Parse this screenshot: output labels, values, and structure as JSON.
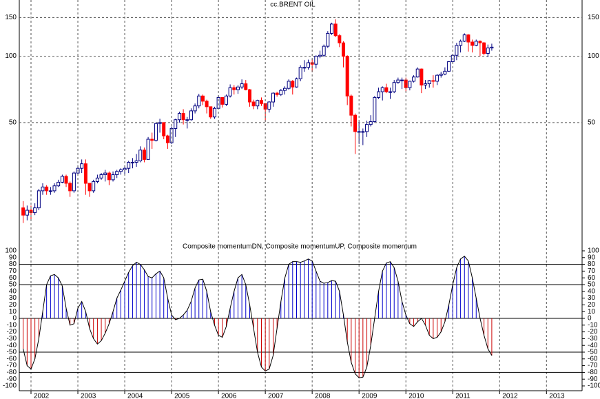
{
  "chart_data": [
    {
      "type": "candlestick",
      "title": "cc.BRENT OIL",
      "log": true,
      "grid": true,
      "xlim": [
        2001.75,
        2013.76
      ],
      "ylim": [
        15,
        180
      ],
      "yticks": [
        150,
        100,
        50
      ],
      "colors": {
        "up": "#ffffff",
        "up_edge": "#000080",
        "down": "#ff0000"
      },
      "x": [
        2001.833,
        2001.917,
        2002,
        2002.083,
        2002.167,
        2002.25,
        2002.333,
        2002.417,
        2002.5,
        2002.583,
        2002.667,
        2002.75,
        2002.833,
        2002.917,
        2003,
        2003.083,
        2003.167,
        2003.25,
        2003.333,
        2003.417,
        2003.5,
        2003.583,
        2003.667,
        2003.75,
        2003.833,
        2003.917,
        2004,
        2004.083,
        2004.167,
        2004.25,
        2004.333,
        2004.417,
        2004.5,
        2004.583,
        2004.667,
        2004.75,
        2004.833,
        2004.917,
        2005,
        2005.083,
        2005.167,
        2005.25,
        2005.333,
        2005.417,
        2005.5,
        2005.583,
        2005.667,
        2005.75,
        2005.833,
        2005.917,
        2006,
        2006.083,
        2006.167,
        2006.25,
        2006.333,
        2006.417,
        2006.5,
        2006.583,
        2006.667,
        2006.75,
        2006.833,
        2006.917,
        2007,
        2007.083,
        2007.167,
        2007.25,
        2007.333,
        2007.417,
        2007.5,
        2007.583,
        2007.667,
        2007.75,
        2007.833,
        2007.917,
        2008,
        2008.083,
        2008.167,
        2008.25,
        2008.333,
        2008.417,
        2008.5,
        2008.583,
        2008.667,
        2008.75,
        2008.833,
        2008.917,
        2009,
        2009.083,
        2009.167,
        2009.25,
        2009.333,
        2009.417,
        2009.5,
        2009.583,
        2009.667,
        2009.75,
        2009.833,
        2009.917,
        2010,
        2010.083,
        2010.167,
        2010.25,
        2010.333,
        2010.417,
        2010.5,
        2010.583,
        2010.667,
        2010.75,
        2010.833,
        2010.917,
        2011,
        2011.083,
        2011.167,
        2011.25,
        2011.333,
        2011.417,
        2011.5,
        2011.583,
        2011.667,
        2011.75,
        2011.833
      ],
      "open": [
        20.5,
        19.0,
        20.0,
        19.5,
        20.5,
        24.5,
        25.5,
        24.5,
        24.5,
        25.8,
        26.8,
        28.5,
        26.5,
        24.5,
        29.5,
        31,
        32.5,
        26.5,
        24.5,
        27,
        28,
        29,
        29.5,
        27.5,
        29,
        30,
        30.5,
        31,
        33,
        33,
        33.5,
        37.5,
        34,
        42,
        41.5,
        49.5,
        50,
        43.5,
        40.5,
        47,
        51.5,
        55,
        51.5,
        51.5,
        56.5,
        59.5,
        66,
        62.5,
        59,
        53,
        58,
        65,
        60.5,
        66,
        72,
        70.5,
        72.5,
        75,
        70.5,
        62,
        59.5,
        63,
        61,
        57.5,
        62,
        68,
        67,
        70,
        71.5,
        77,
        72.5,
        79,
        89,
        89,
        93.5,
        92,
        100,
        101,
        111,
        127,
        140,
        124,
        115,
        100,
        66,
        54,
        45.5,
        45.5,
        45.5,
        49,
        50.5,
        65,
        69,
        72,
        69,
        69,
        76,
        78,
        78,
        72,
        77,
        80.5,
        87.5,
        74,
        75,
        77.5,
        77,
        82,
        83,
        85.5,
        94.5,
        101,
        112,
        117,
        125,
        116,
        112,
        117,
        115,
        103,
        109
      ],
      "high": [
        22,
        21,
        21,
        21.5,
        25,
        26.5,
        26,
        25.5,
        26.5,
        27.5,
        29,
        29,
        27,
        30,
        32,
        34,
        34,
        26.5,
        27.5,
        29,
        29.5,
        30.5,
        30,
        30,
        30.5,
        31,
        32,
        33.5,
        34.5,
        36,
        39,
        38.5,
        43,
        45,
        50,
        52,
        50,
        44,
        48,
        52,
        56,
        57.5,
        53,
        58,
        61,
        67.5,
        67,
        63.5,
        59,
        59,
        66.5,
        65,
        67,
        74.5,
        74,
        74,
        78.5,
        78,
        71,
        63.5,
        63.5,
        65,
        61,
        62.5,
        68.5,
        69,
        71,
        73,
        78.5,
        78,
        80,
        91,
        96,
        96.5,
        97,
        101,
        106,
        113,
        130,
        142,
        147,
        126,
        117,
        101,
        67,
        55,
        50,
        47,
        51,
        54,
        66,
        72,
        73,
        75,
        72,
        78,
        80,
        80,
        80,
        77.5,
        82,
        89,
        88,
        78,
        78,
        82,
        83,
        85,
        89,
        95,
        102,
        115,
        119,
        127,
        126,
        119,
        119,
        118,
        116,
        113,
        114
      ],
      "low": [
        17.5,
        18,
        18,
        19,
        20,
        23.5,
        23.5,
        23.5,
        24,
        25.5,
        26.5,
        25.5,
        23,
        24,
        29,
        29.5,
        23.5,
        23,
        24,
        26.5,
        27.5,
        27,
        26,
        27,
        28,
        29,
        29,
        29.5,
        31,
        31.5,
        33,
        33,
        34,
        38,
        41,
        45,
        42,
        38,
        40,
        43,
        50,
        49,
        47,
        51,
        55,
        58,
        60,
        55,
        52,
        52,
        58,
        58.5,
        59.5,
        65,
        67,
        67.5,
        71,
        70,
        59,
        57.5,
        57.5,
        59.5,
        50.5,
        55.5,
        59,
        65.5,
        66,
        67,
        70.5,
        67,
        72,
        77,
        85,
        87,
        85,
        88,
        98,
        99,
        109,
        125,
        122,
        110,
        89,
        60,
        48,
        36,
        40,
        39.5,
        43,
        48,
        50,
        64,
        63,
        68,
        64,
        68,
        75,
        71,
        69,
        70,
        76,
        80,
        68,
        71,
        72,
        72,
        74,
        80,
        82,
        85,
        93,
        96,
        104,
        116,
        105,
        104,
        111,
        100,
        101,
        99,
        106
      ],
      "close": [
        19.0,
        20.0,
        19.5,
        20.5,
        24.5,
        25.5,
        24.5,
        24.5,
        25.8,
        26.8,
        28.5,
        26.5,
        24.5,
        29.5,
        31,
        32.5,
        26.5,
        24.5,
        27,
        28,
        29,
        29.5,
        27.5,
        29,
        30,
        30.5,
        31,
        33,
        33,
        33.5,
        37.5,
        34,
        42,
        41.5,
        49.5,
        50,
        43.5,
        40.5,
        47,
        51.5,
        55,
        51.5,
        51.5,
        56.5,
        59.5,
        66,
        62.5,
        59,
        53,
        58,
        65,
        60.5,
        66,
        72,
        70.5,
        72.5,
        75,
        70.5,
        62,
        59.5,
        63,
        61,
        57.5,
        62,
        68,
        67,
        70,
        71.5,
        77,
        72.5,
        79,
        89,
        89,
        93.5,
        92,
        100,
        101,
        111,
        127,
        140,
        124,
        115,
        100,
        66,
        54,
        45.5,
        45.5,
        45.5,
        49,
        50.5,
        65,
        69,
        72,
        69,
        69,
        76,
        78,
        78,
        72,
        77,
        80.5,
        87.5,
        74,
        75,
        77.5,
        77,
        82,
        83,
        85.5,
        94.5,
        101,
        112,
        117,
        125,
        116,
        112,
        117,
        115,
        103,
        109,
        110
      ]
    },
    {
      "type": "bar",
      "title": "Composite momentumDN, Composite momentumUP, Composite momentum",
      "xlim": [
        2001.75,
        2013.76
      ],
      "xticks": [
        2002,
        2003,
        2004,
        2005,
        2006,
        2007,
        2008,
        2009,
        2010,
        2011,
        2012,
        2013
      ],
      "ylim": [
        -100,
        100
      ],
      "yticks": [
        100,
        90,
        80,
        70,
        60,
        50,
        40,
        30,
        20,
        10,
        0,
        -10,
        -20,
        -30,
        -40,
        -50,
        -60,
        -70,
        -80,
        -90,
        -100
      ],
      "hlines": [
        80,
        50,
        0,
        -50,
        -80
      ],
      "bar_colors": {
        "up": "#0000cc",
        "down": "#cc0000"
      },
      "x": [
        2001.833,
        2001.917,
        2002,
        2002.083,
        2002.167,
        2002.25,
        2002.333,
        2002.417,
        2002.5,
        2002.583,
        2002.667,
        2002.75,
        2002.833,
        2002.917,
        2003,
        2003.083,
        2003.167,
        2003.25,
        2003.333,
        2003.417,
        2003.5,
        2003.583,
        2003.667,
        2003.75,
        2003.833,
        2003.917,
        2004,
        2004.083,
        2004.167,
        2004.25,
        2004.333,
        2004.417,
        2004.5,
        2004.583,
        2004.667,
        2004.75,
        2004.833,
        2004.917,
        2005,
        2005.083,
        2005.167,
        2005.25,
        2005.333,
        2005.417,
        2005.5,
        2005.583,
        2005.667,
        2005.75,
        2005.833,
        2005.917,
        2006,
        2006.083,
        2006.167,
        2006.25,
        2006.333,
        2006.417,
        2006.5,
        2006.583,
        2006.667,
        2006.75,
        2006.833,
        2006.917,
        2007,
        2007.083,
        2007.167,
        2007.25,
        2007.333,
        2007.417,
        2007.5,
        2007.583,
        2007.667,
        2007.75,
        2007.833,
        2007.917,
        2008,
        2008.083,
        2008.167,
        2008.25,
        2008.333,
        2008.417,
        2008.5,
        2008.583,
        2008.667,
        2008.75,
        2008.833,
        2008.917,
        2009,
        2009.083,
        2009.167,
        2009.25,
        2009.333,
        2009.417,
        2009.5,
        2009.583,
        2009.667,
        2009.75,
        2009.833,
        2009.917,
        2010,
        2010.083,
        2010.167,
        2010.25,
        2010.333,
        2010.417,
        2010.5,
        2010.583,
        2010.667,
        2010.75,
        2010.833,
        2010.917,
        2011,
        2011.083,
        2011.167,
        2011.25,
        2011.333,
        2011.417,
        2011.5,
        2011.583,
        2011.667,
        2011.75,
        2011.833
      ],
      "series": [
        {
          "name": "Composite momentum",
          "color": "#000000",
          "values": [
            -45,
            -70,
            -75,
            -60,
            -30,
            10,
            50,
            63,
            65,
            60,
            48,
            15,
            -10,
            -8,
            15,
            25,
            10,
            -15,
            -30,
            -38,
            -33,
            -22,
            -8,
            10,
            30,
            42,
            55,
            68,
            78,
            83,
            80,
            72,
            62,
            60,
            66,
            70,
            60,
            30,
            5,
            -2,
            0,
            5,
            12,
            25,
            45,
            57,
            58,
            40,
            10,
            -10,
            -25,
            -28,
            -12,
            15,
            40,
            60,
            65,
            50,
            20,
            -15,
            -50,
            -72,
            -78,
            -75,
            -55,
            -15,
            25,
            60,
            80,
            84,
            84,
            83,
            85,
            88,
            85,
            70,
            55,
            52,
            53,
            56,
            55,
            40,
            5,
            -35,
            -65,
            -82,
            -88,
            -87,
            -72,
            -40,
            0,
            40,
            70,
            82,
            84,
            75,
            55,
            25,
            5,
            -8,
            -12,
            -5,
            0,
            -10,
            -25,
            -30,
            -28,
            -20,
            -5,
            20,
            50,
            75,
            88,
            92,
            85,
            60,
            30,
            0,
            -25,
            -45,
            -55
          ]
        }
      ]
    }
  ]
}
